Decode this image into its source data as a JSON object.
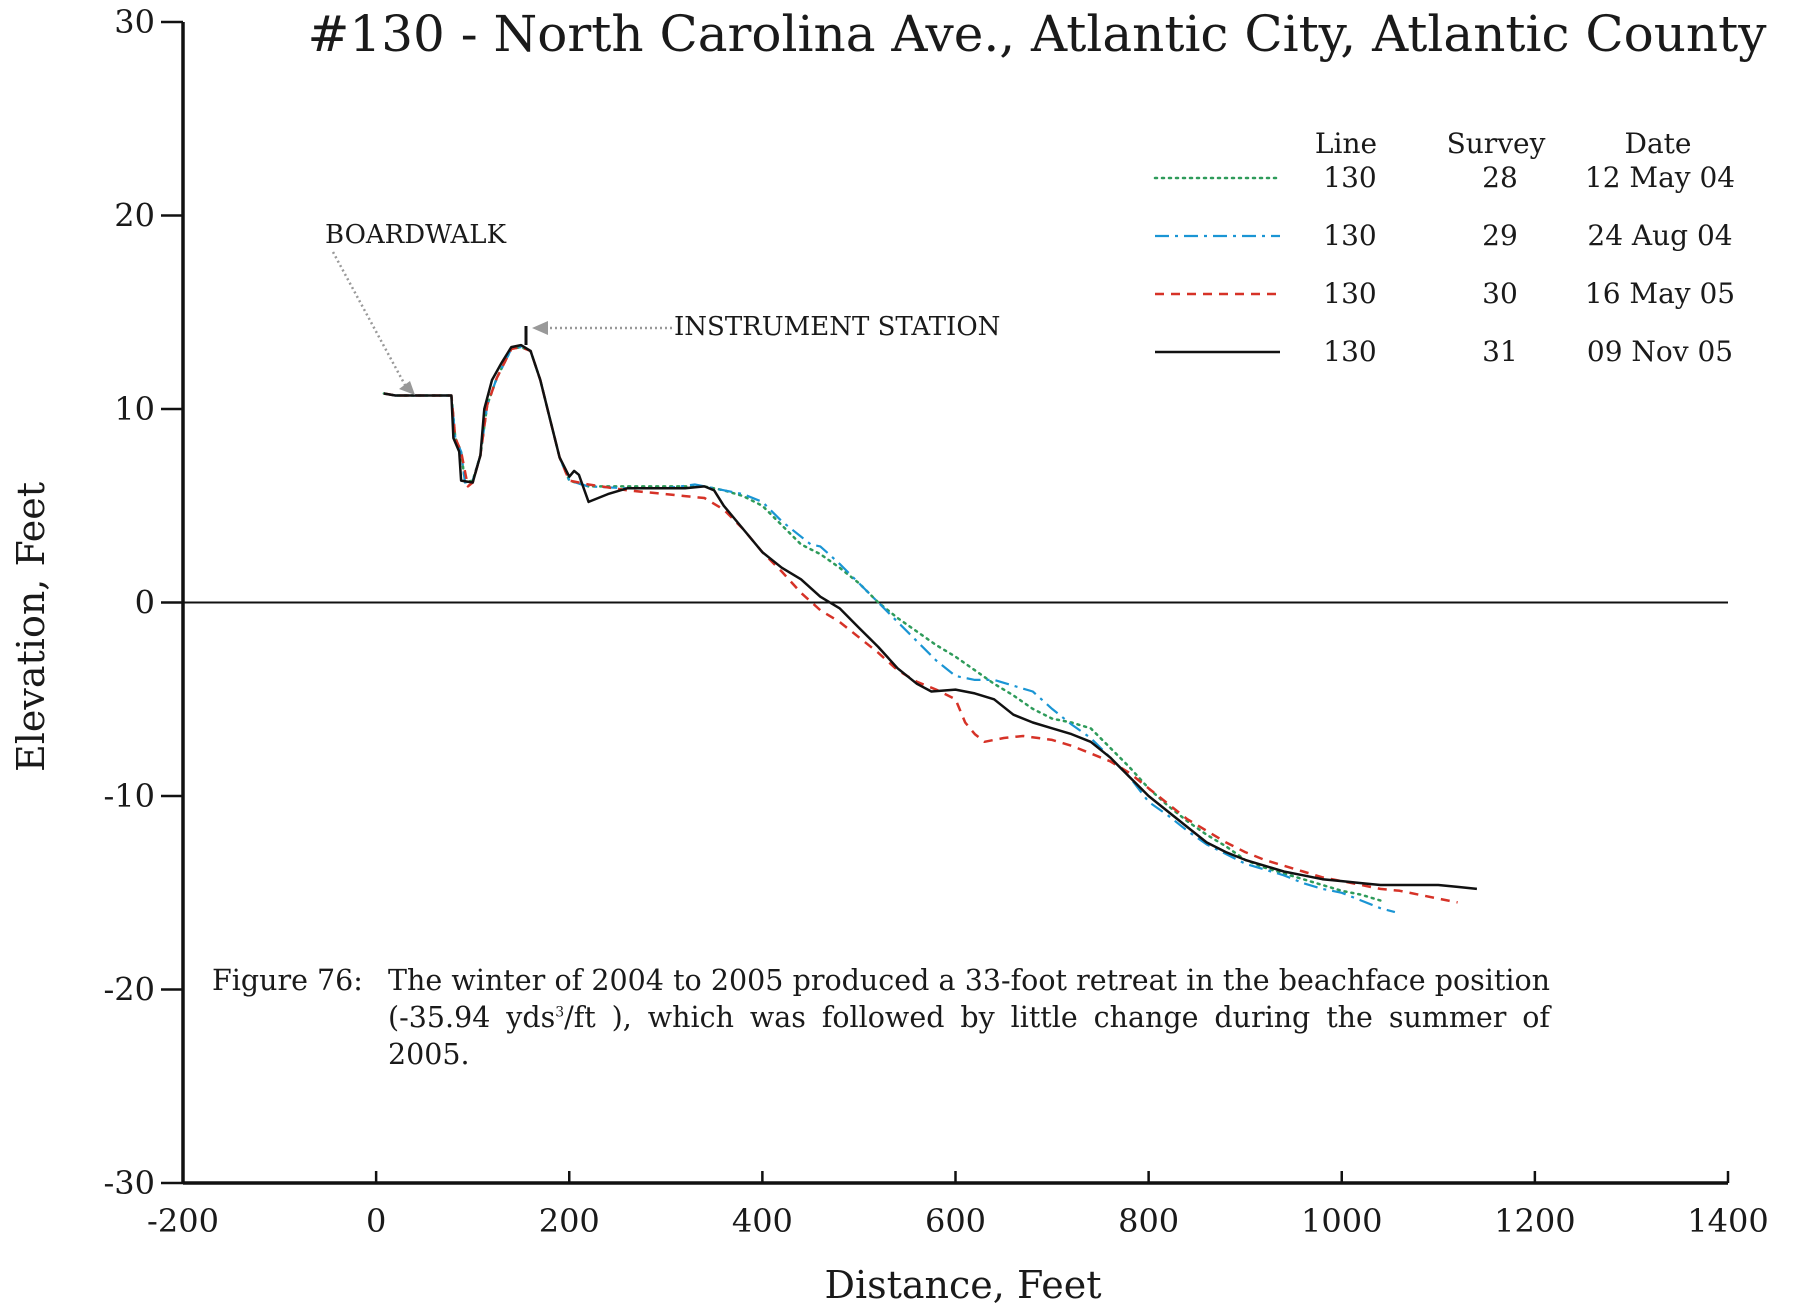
{
  "chart_data": {
    "type": "line",
    "title": "#130 - North Carolina Ave., Atlantic City, Atlantic County",
    "xlabel": "Distance, Feet",
    "ylabel": "Elevation, Feet",
    "xlim": [
      -200,
      1400
    ],
    "ylim": [
      -30,
      30
    ],
    "xticks": [
      -200,
      0,
      200,
      400,
      600,
      800,
      1000,
      1200,
      1400
    ],
    "yticks": [
      -30,
      -20,
      -10,
      0,
      10,
      20,
      30
    ],
    "grid": false,
    "legend": {
      "placement": "top-right",
      "headers": {
        "line": "Line",
        "survey": "Survey",
        "date": "Date"
      }
    },
    "annotations": {
      "boardwalk": "BOARDWALK",
      "instrument_station": "INSTRUMENT STATION"
    },
    "caption": {
      "label": "Figure 76:",
      "text_before_sup": "The winter of 2004 to 2005 produced a 33-foot retreat in the beachface position (-35.94 yds",
      "sup": "3",
      "text_after_sup": "/ft ), which was followed by little change during the summer of 2005."
    },
    "series": [
      {
        "line": "130",
        "survey": "28",
        "date": "12 May 04",
        "color": "#2e9b5a",
        "style": "dotted",
        "points": [
          [
            8,
            10.8
          ],
          [
            20,
            10.7
          ],
          [
            40,
            10.7
          ],
          [
            60,
            10.7
          ],
          [
            78,
            10.7
          ],
          [
            82,
            8.5
          ],
          [
            88,
            7.8
          ],
          [
            92,
            6.2
          ],
          [
            100,
            6.3
          ],
          [
            108,
            7.6
          ],
          [
            115,
            10.2
          ],
          [
            125,
            11.6
          ],
          [
            140,
            13.1
          ],
          [
            150,
            13.2
          ],
          [
            160,
            13.0
          ],
          [
            170,
            11.5
          ],
          [
            180,
            9.5
          ],
          [
            190,
            7.5
          ],
          [
            200,
            6.3
          ],
          [
            220,
            6.0
          ],
          [
            260,
            6.0
          ],
          [
            300,
            6.0
          ],
          [
            340,
            6.0
          ],
          [
            360,
            5.8
          ],
          [
            380,
            5.5
          ],
          [
            400,
            5.0
          ],
          [
            420,
            4.0
          ],
          [
            440,
            3.0
          ],
          [
            460,
            2.5
          ],
          [
            480,
            1.8
          ],
          [
            500,
            1.0
          ],
          [
            520,
            0.0
          ],
          [
            540,
            -0.8
          ],
          [
            560,
            -1.5
          ],
          [
            580,
            -2.2
          ],
          [
            600,
            -2.8
          ],
          [
            620,
            -3.5
          ],
          [
            640,
            -4.2
          ],
          [
            660,
            -4.8
          ],
          [
            680,
            -5.5
          ],
          [
            700,
            -6.0
          ],
          [
            720,
            -6.2
          ],
          [
            740,
            -6.5
          ],
          [
            760,
            -7.5
          ],
          [
            780,
            -8.5
          ],
          [
            800,
            -9.6
          ],
          [
            820,
            -10.5
          ],
          [
            840,
            -11.3
          ],
          [
            860,
            -12.0
          ],
          [
            880,
            -12.6
          ],
          [
            900,
            -13.3
          ],
          [
            920,
            -13.7
          ],
          [
            940,
            -14.0
          ],
          [
            960,
            -14.3
          ],
          [
            980,
            -14.6
          ],
          [
            1000,
            -14.9
          ],
          [
            1020,
            -15.1
          ],
          [
            1040,
            -15.4
          ]
        ]
      },
      {
        "line": "130",
        "survey": "29",
        "date": "24 Aug 04",
        "color": "#1a95d4",
        "style": "dash-dot",
        "points": [
          [
            8,
            10.8
          ],
          [
            20,
            10.7
          ],
          [
            40,
            10.7
          ],
          [
            60,
            10.7
          ],
          [
            78,
            10.7
          ],
          [
            82,
            8.5
          ],
          [
            88,
            7.8
          ],
          [
            92,
            6.2
          ],
          [
            100,
            6.3
          ],
          [
            108,
            7.6
          ],
          [
            115,
            10.2
          ],
          [
            125,
            11.6
          ],
          [
            140,
            13.1
          ],
          [
            150,
            13.2
          ],
          [
            160,
            13.0
          ],
          [
            170,
            11.5
          ],
          [
            180,
            9.5
          ],
          [
            190,
            7.5
          ],
          [
            200,
            6.3
          ],
          [
            220,
            6.0
          ],
          [
            260,
            5.9
          ],
          [
            300,
            5.9
          ],
          [
            330,
            6.1
          ],
          [
            350,
            5.9
          ],
          [
            380,
            5.6
          ],
          [
            400,
            5.2
          ],
          [
            420,
            4.2
          ],
          [
            450,
            3.0
          ],
          [
            460,
            2.9
          ],
          [
            480,
            2.0
          ],
          [
            500,
            1.0
          ],
          [
            520,
            0.0
          ],
          [
            540,
            -1.0
          ],
          [
            560,
            -2.0
          ],
          [
            580,
            -3.0
          ],
          [
            600,
            -3.8
          ],
          [
            620,
            -4.0
          ],
          [
            640,
            -4.0
          ],
          [
            660,
            -4.3
          ],
          [
            680,
            -4.6
          ],
          [
            700,
            -5.5
          ],
          [
            720,
            -6.3
          ],
          [
            740,
            -7.0
          ],
          [
            760,
            -8.0
          ],
          [
            780,
            -9.0
          ],
          [
            800,
            -10.3
          ],
          [
            820,
            -11.0
          ],
          [
            840,
            -11.8
          ],
          [
            860,
            -12.5
          ],
          [
            880,
            -13.0
          ],
          [
            900,
            -13.5
          ],
          [
            920,
            -13.8
          ],
          [
            940,
            -14.1
          ],
          [
            960,
            -14.5
          ],
          [
            980,
            -14.8
          ],
          [
            1000,
            -15.0
          ],
          [
            1020,
            -15.4
          ],
          [
            1040,
            -15.8
          ],
          [
            1055,
            -16.0
          ]
        ]
      },
      {
        "line": "130",
        "survey": "30",
        "date": "16 May 05",
        "color": "#d63227",
        "style": "dashed",
        "points": [
          [
            8,
            10.8
          ],
          [
            20,
            10.7
          ],
          [
            40,
            10.7
          ],
          [
            60,
            10.7
          ],
          [
            78,
            10.7
          ],
          [
            82,
            8.5
          ],
          [
            88,
            7.8
          ],
          [
            95,
            6.0
          ],
          [
            100,
            6.2
          ],
          [
            108,
            7.6
          ],
          [
            115,
            10.2
          ],
          [
            125,
            11.6
          ],
          [
            140,
            13.1
          ],
          [
            150,
            13.2
          ],
          [
            160,
            13.0
          ],
          [
            170,
            11.5
          ],
          [
            180,
            9.5
          ],
          [
            190,
            7.5
          ],
          [
            200,
            6.3
          ],
          [
            220,
            6.1
          ],
          [
            260,
            5.8
          ],
          [
            300,
            5.6
          ],
          [
            320,
            5.5
          ],
          [
            340,
            5.4
          ],
          [
            360,
            4.8
          ],
          [
            380,
            3.8
          ],
          [
            400,
            2.6
          ],
          [
            420,
            1.6
          ],
          [
            440,
            0.5
          ],
          [
            460,
            -0.4
          ],
          [
            480,
            -1.0
          ],
          [
            500,
            -1.8
          ],
          [
            520,
            -2.6
          ],
          [
            540,
            -3.5
          ],
          [
            560,
            -4.1
          ],
          [
            580,
            -4.5
          ],
          [
            600,
            -5.0
          ],
          [
            610,
            -6.2
          ],
          [
            620,
            -6.8
          ],
          [
            630,
            -7.2
          ],
          [
            650,
            -7.0
          ],
          [
            670,
            -6.9
          ],
          [
            700,
            -7.1
          ],
          [
            720,
            -7.4
          ],
          [
            740,
            -7.8
          ],
          [
            760,
            -8.2
          ],
          [
            780,
            -8.8
          ],
          [
            800,
            -9.6
          ],
          [
            820,
            -10.4
          ],
          [
            840,
            -11.2
          ],
          [
            860,
            -11.8
          ],
          [
            880,
            -12.4
          ],
          [
            900,
            -12.9
          ],
          [
            920,
            -13.3
          ],
          [
            940,
            -13.6
          ],
          [
            960,
            -13.9
          ],
          [
            980,
            -14.2
          ],
          [
            1000,
            -14.4
          ],
          [
            1020,
            -14.6
          ],
          [
            1040,
            -14.8
          ],
          [
            1060,
            -14.9
          ],
          [
            1080,
            -15.1
          ],
          [
            1100,
            -15.3
          ],
          [
            1120,
            -15.5
          ]
        ]
      },
      {
        "line": "130",
        "survey": "31",
        "date": "09 Nov 05",
        "color": "#111111",
        "style": "solid",
        "points": [
          [
            8,
            10.8
          ],
          [
            20,
            10.7
          ],
          [
            40,
            10.7
          ],
          [
            60,
            10.7
          ],
          [
            78,
            10.7
          ],
          [
            80,
            8.5
          ],
          [
            86,
            7.8
          ],
          [
            88,
            6.3
          ],
          [
            100,
            6.2
          ],
          [
            108,
            7.6
          ],
          [
            112,
            10.0
          ],
          [
            120,
            11.5
          ],
          [
            130,
            12.4
          ],
          [
            140,
            13.2
          ],
          [
            150,
            13.3
          ],
          [
            160,
            13.0
          ],
          [
            170,
            11.5
          ],
          [
            180,
            9.5
          ],
          [
            190,
            7.5
          ],
          [
            200,
            6.5
          ],
          [
            205,
            6.8
          ],
          [
            210,
            6.6
          ],
          [
            220,
            5.2
          ],
          [
            240,
            5.6
          ],
          [
            260,
            5.9
          ],
          [
            300,
            5.9
          ],
          [
            320,
            5.9
          ],
          [
            340,
            6.0
          ],
          [
            350,
            5.8
          ],
          [
            360,
            5.0
          ],
          [
            380,
            3.8
          ],
          [
            400,
            2.6
          ],
          [
            420,
            1.8
          ],
          [
            440,
            1.2
          ],
          [
            460,
            0.3
          ],
          [
            480,
            -0.3
          ],
          [
            500,
            -1.3
          ],
          [
            520,
            -2.3
          ],
          [
            540,
            -3.4
          ],
          [
            560,
            -4.2
          ],
          [
            575,
            -4.6
          ],
          [
            600,
            -4.5
          ],
          [
            620,
            -4.7
          ],
          [
            640,
            -5.0
          ],
          [
            660,
            -5.8
          ],
          [
            680,
            -6.2
          ],
          [
            700,
            -6.5
          ],
          [
            720,
            -6.8
          ],
          [
            740,
            -7.2
          ],
          [
            760,
            -8.0
          ],
          [
            780,
            -9.0
          ],
          [
            800,
            -10.0
          ],
          [
            820,
            -10.8
          ],
          [
            840,
            -11.6
          ],
          [
            860,
            -12.4
          ],
          [
            880,
            -12.9
          ],
          [
            900,
            -13.3
          ],
          [
            920,
            -13.6
          ],
          [
            940,
            -13.9
          ],
          [
            960,
            -14.1
          ],
          [
            980,
            -14.3
          ],
          [
            1000,
            -14.4
          ],
          [
            1020,
            -14.5
          ],
          [
            1040,
            -14.6
          ],
          [
            1060,
            -14.6
          ],
          [
            1080,
            -14.6
          ],
          [
            1100,
            -14.6
          ],
          [
            1120,
            -14.7
          ],
          [
            1140,
            -14.8
          ]
        ]
      }
    ]
  }
}
